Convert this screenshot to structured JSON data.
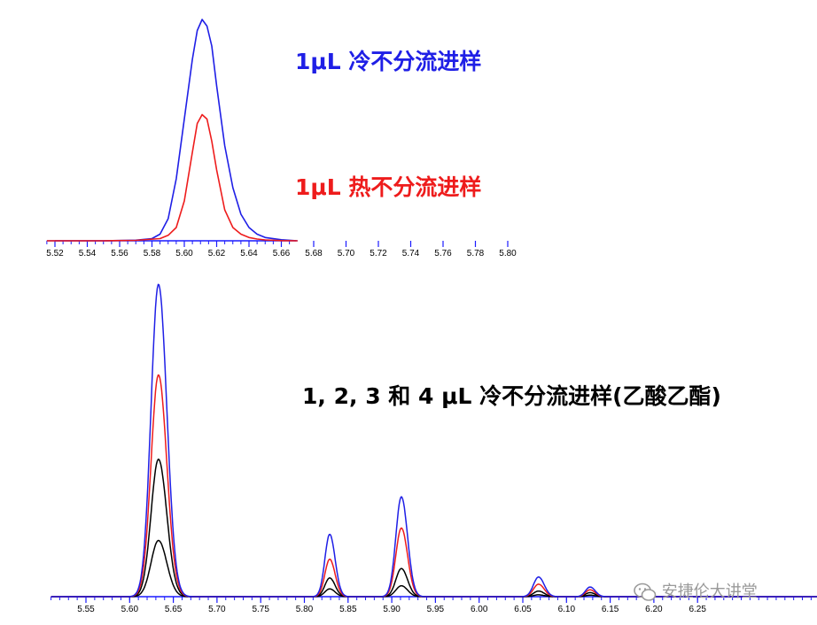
{
  "colors": {
    "cold": "#1f1fe6",
    "hot": "#ee1c1c",
    "black": "#000000",
    "axis": "#1a1aff"
  },
  "labels": {
    "top_cold": "1μL 冷不分流进样",
    "top_hot": "1μL 热不分流进样",
    "bottom": "1, 2, 3 和 4 μL 冷不分流进样(乙酸乙酯)"
  },
  "watermark": {
    "text": "安捷伦大讲堂",
    "icon": "wechat-logo-icon"
  },
  "chart_data": [
    {
      "type": "line",
      "xlim": [
        5.515,
        5.67
      ],
      "ylim": [
        0,
        100
      ],
      "x_ticks": [
        "5.52",
        "5.54",
        "5.56",
        "5.58",
        "5.60",
        "5.62",
        "5.64",
        "5.66",
        "5.68",
        "5.70",
        "5.72",
        "5.74",
        "5.76",
        "5.78",
        "5.80"
      ],
      "series": [
        {
          "name": "1μL 冷不分流进样",
          "color": "cold",
          "x": [
            5.515,
            5.55,
            5.57,
            5.58,
            5.585,
            5.59,
            5.595,
            5.6,
            5.605,
            5.608,
            5.611,
            5.614,
            5.617,
            5.62,
            5.625,
            5.63,
            5.635,
            5.64,
            5.645,
            5.65,
            5.66,
            5.67
          ],
          "y": [
            0,
            0,
            0.3,
            1,
            3,
            10,
            28,
            55,
            82,
            95,
            100,
            97,
            88,
            70,
            43,
            24,
            12,
            6,
            3,
            1.5,
            0.5,
            0
          ]
        },
        {
          "name": "1μL 热不分流进样",
          "color": "hot",
          "x": [
            5.515,
            5.55,
            5.57,
            5.585,
            5.59,
            5.595,
            5.6,
            5.605,
            5.608,
            5.611,
            5.614,
            5.617,
            5.62,
            5.625,
            5.63,
            5.635,
            5.64,
            5.645,
            5.65,
            5.66,
            5.67
          ],
          "y": [
            0,
            0,
            0.2,
            1,
            2.5,
            6,
            18,
            40,
            53,
            57,
            55,
            45,
            32,
            14,
            6,
            3,
            1.5,
            0.8,
            0.4,
            0.1,
            0
          ]
        }
      ]
    },
    {
      "type": "line",
      "xlim": [
        5.51,
        6.4
      ],
      "ylim": [
        0,
        100
      ],
      "x_ticks": [
        "5.55",
        "5.60",
        "5.65",
        "5.70",
        "5.75",
        "5.80",
        "5.85",
        "5.90",
        "5.95",
        "6.00",
        "6.05",
        "6.10",
        "6.15",
        "6.20",
        "6.25"
      ],
      "peaks": [
        {
          "rt": 5.633,
          "width": 0.0085,
          "heights": [
            18,
            44,
            71,
            100
          ]
        },
        {
          "rt": 5.829,
          "width": 0.0055,
          "heights": [
            2.5,
            6,
            12,
            20
          ]
        },
        {
          "rt": 5.911,
          "width": 0.0063,
          "heights": [
            3.5,
            9,
            22,
            32
          ]
        },
        {
          "rt": 6.068,
          "width": 0.0058,
          "heights": [
            0.6,
            1.8,
            4,
            6.3
          ]
        },
        {
          "rt": 6.127,
          "width": 0.0052,
          "heights": [
            0.5,
            1.3,
            2.2,
            3.1
          ]
        }
      ],
      "series": [
        {
          "color": "black"
        },
        {
          "color": "black"
        },
        {
          "color": "hot"
        },
        {
          "color": "cold"
        }
      ]
    }
  ]
}
